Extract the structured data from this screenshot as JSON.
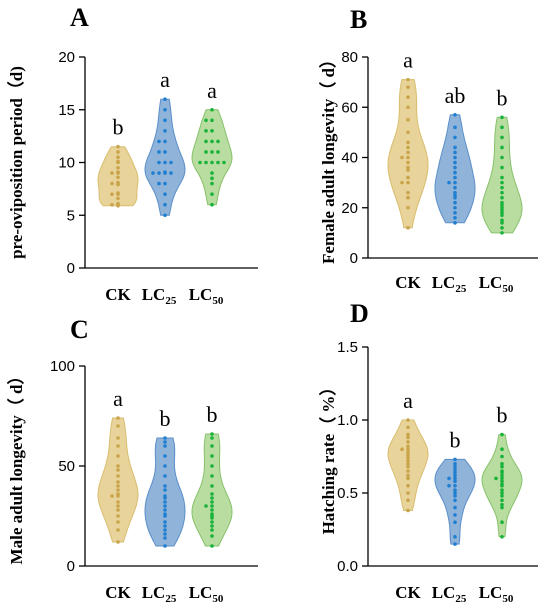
{
  "categories": [
    {
      "main": "CK",
      "sub": ""
    },
    {
      "main": "LC",
      "sub": "25"
    },
    {
      "main": "LC",
      "sub": "50"
    }
  ],
  "colors": {
    "fills": [
      "#e8d49a",
      "#8fb3d9",
      "#b9dca0"
    ],
    "strokes": [
      "#d9bd6e",
      "#5b8fc9",
      "#86c26b"
    ],
    "points": [
      "#c9a44a",
      "#1f7fd1",
      "#17b33a"
    ]
  },
  "chart_data": [
    {
      "type": "violin",
      "panel": "A",
      "ylabel": "pre-oviposition period（d)",
      "ylim": [
        0,
        20
      ],
      "yticks": [
        0,
        5,
        10,
        15,
        20
      ],
      "yticklabels": [
        "0",
        "5",
        "10",
        "15",
        "20"
      ],
      "letters": [
        "b",
        "a",
        "a"
      ],
      "series": [
        {
          "category": "CK",
          "values": [
            5.9,
            6.0,
            6.0,
            6.1,
            6.6,
            7.0,
            7.0,
            7.1,
            7.9,
            8.0,
            8.0,
            8.1,
            8.6,
            9.0,
            9.0,
            9.1,
            9.5,
            10.0,
            10.1,
            10.5,
            11.0,
            11.5
          ]
        },
        {
          "category": "LC25",
          "values": [
            5.0,
            6.0,
            7.0,
            8.0,
            8.0,
            9.0,
            9.0,
            9.1,
            9.0,
            9.0,
            10.0,
            10.0,
            10.0,
            11.0,
            11.0,
            12.0,
            12.0,
            13.0,
            14.0,
            15.0,
            16.0
          ]
        },
        {
          "category": "LC50",
          "values": [
            6.0,
            7.0,
            8.0,
            8.5,
            9.0,
            10.0,
            10.0,
            10.0,
            10.0,
            10.0,
            11.0,
            11.0,
            11.0,
            12.0,
            12.0,
            12.0,
            13.0,
            13.0,
            14.0,
            14.0,
            15.0
          ]
        }
      ]
    },
    {
      "type": "violin",
      "panel": "B",
      "ylabel": "Female adult longevity（ d）",
      "ylim": [
        0,
        80
      ],
      "yticks": [
        0,
        20,
        40,
        60,
        80
      ],
      "yticklabels": [
        "0",
        "20",
        "40",
        "60",
        "80"
      ],
      "letters": [
        "a",
        "ab",
        "b"
      ],
      "series": [
        {
          "category": "CK",
          "values": [
            12,
            20,
            24,
            26,
            30,
            30,
            32,
            35,
            36,
            38,
            40,
            40,
            42,
            44,
            46,
            50,
            55,
            60,
            64,
            68,
            71
          ]
        },
        {
          "category": "LC25",
          "values": [
            14,
            16,
            18,
            20,
            22,
            24,
            25,
            26,
            28,
            30,
            30,
            32,
            34,
            36,
            38,
            40,
            42,
            44,
            48,
            52,
            57
          ]
        },
        {
          "category": "LC50",
          "values": [
            10,
            12,
            14,
            15,
            17,
            18,
            19,
            20,
            21,
            22,
            24,
            26,
            28,
            30,
            32,
            36,
            40,
            44,
            48,
            52,
            56
          ]
        }
      ]
    },
    {
      "type": "violin",
      "panel": "C",
      "ylabel": "Male adult longevity（ d）",
      "ylim": [
        0,
        100
      ],
      "yticks": [
        0,
        50,
        100
      ],
      "yticklabels": [
        "0",
        "50",
        "100"
      ],
      "letters": [
        "a",
        "b",
        "b"
      ],
      "series": [
        {
          "category": "CK",
          "values": [
            12,
            18,
            22,
            25,
            28,
            30,
            32,
            35,
            35,
            36,
            38,
            40,
            42,
            45,
            48,
            50,
            55,
            60,
            64,
            70,
            74
          ]
        },
        {
          "category": "LC25",
          "values": [
            10,
            14,
            16,
            18,
            20,
            22,
            25,
            26,
            28,
            30,
            32,
            34,
            35,
            38,
            40,
            45,
            50,
            55,
            60,
            62,
            64
          ]
        },
        {
          "category": "LC50",
          "values": [
            10,
            15,
            18,
            20,
            22,
            24,
            25,
            26,
            28,
            30,
            30,
            32,
            34,
            36,
            40,
            45,
            50,
            55,
            60,
            64,
            66
          ]
        }
      ]
    },
    {
      "type": "violin",
      "panel": "D",
      "ylabel": "Hatching rate（ %）",
      "ylim": [
        0.0,
        1.5
      ],
      "yticks": [
        0.0,
        0.5,
        1.0,
        1.5
      ],
      "yticklabels": [
        "0.0",
        "0.5",
        "1.0",
        "1.5"
      ],
      "letters": [
        "a",
        "b",
        "b"
      ],
      "series": [
        {
          "category": "CK",
          "values": [
            0.38,
            0.45,
            0.5,
            0.55,
            0.6,
            0.62,
            0.65,
            0.68,
            0.7,
            0.72,
            0.74,
            0.76,
            0.78,
            0.8,
            0.8,
            0.82,
            0.85,
            0.88,
            0.9,
            0.95,
            1.0
          ]
        },
        {
          "category": "LC25",
          "values": [
            0.15,
            0.2,
            0.3,
            0.35,
            0.4,
            0.45,
            0.48,
            0.5,
            0.52,
            0.55,
            0.55,
            0.58,
            0.6,
            0.6,
            0.62,
            0.64,
            0.66,
            0.68,
            0.7,
            0.73
          ]
        },
        {
          "category": "LC50",
          "values": [
            0.2,
            0.3,
            0.4,
            0.42,
            0.45,
            0.48,
            0.5,
            0.52,
            0.55,
            0.56,
            0.58,
            0.6,
            0.6,
            0.62,
            0.64,
            0.65,
            0.68,
            0.7,
            0.75,
            0.8,
            0.9
          ]
        }
      ]
    }
  ]
}
